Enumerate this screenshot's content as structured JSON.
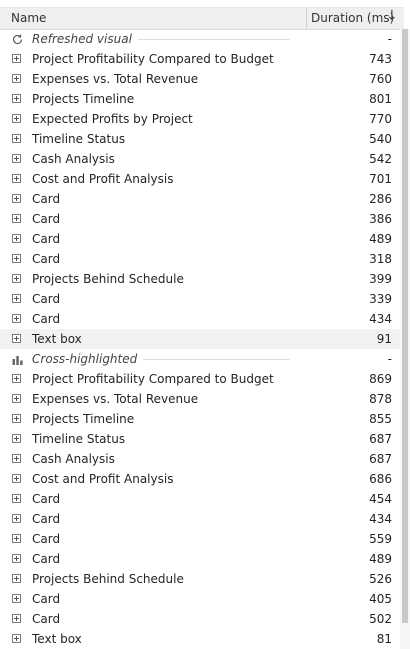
{
  "header": {
    "name_label": "Name",
    "duration_label": "Duration (ms)",
    "sort_icon": "arrow-down-icon"
  },
  "groups": [
    {
      "label": "Refreshed visual",
      "icon": "refresh-icon",
      "value": "-",
      "rows": [
        {
          "label": "Project Profitability Compared to Budget",
          "value": "743"
        },
        {
          "label": "Expenses vs. Total Revenue",
          "value": "760"
        },
        {
          "label": "Projects Timeline",
          "value": "801"
        },
        {
          "label": "Expected Profits by Project",
          "value": "770"
        },
        {
          "label": "Timeline Status",
          "value": "540"
        },
        {
          "label": "Cash Analysis",
          "value": "542"
        },
        {
          "label": "Cost and Profit Analysis",
          "value": "701"
        },
        {
          "label": "Card",
          "value": "286"
        },
        {
          "label": "Card",
          "value": "386"
        },
        {
          "label": "Card",
          "value": "489"
        },
        {
          "label": "Card",
          "value": "318"
        },
        {
          "label": "Projects Behind Schedule",
          "value": "399"
        },
        {
          "label": "Card",
          "value": "339"
        },
        {
          "label": "Card",
          "value": "434"
        },
        {
          "label": "Text box",
          "value": "91",
          "highlighted": true
        }
      ]
    },
    {
      "label": "Cross-highlighted",
      "icon": "bar-chart-icon",
      "value": "-",
      "rows": [
        {
          "label": "Project Profitability Compared to Budget",
          "value": "869"
        },
        {
          "label": "Expenses vs. Total Revenue",
          "value": "878"
        },
        {
          "label": "Projects Timeline",
          "value": "855"
        },
        {
          "label": "Timeline Status",
          "value": "687"
        },
        {
          "label": "Cash Analysis",
          "value": "687"
        },
        {
          "label": "Cost and Profit Analysis",
          "value": "686"
        },
        {
          "label": "Card",
          "value": "454"
        },
        {
          "label": "Card",
          "value": "434"
        },
        {
          "label": "Card",
          "value": "559"
        },
        {
          "label": "Card",
          "value": "489"
        },
        {
          "label": "Projects Behind Schedule",
          "value": "526"
        },
        {
          "label": "Card",
          "value": "405"
        },
        {
          "label": "Card",
          "value": "502"
        },
        {
          "label": "Text box",
          "value": "81"
        }
      ]
    }
  ]
}
